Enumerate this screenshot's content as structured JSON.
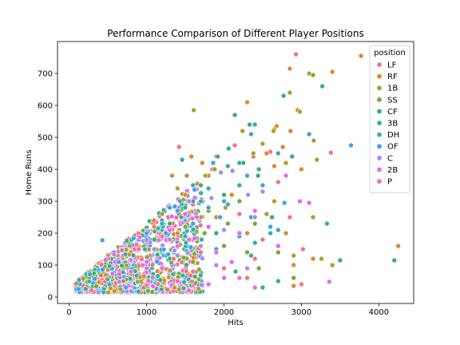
{
  "chart_data": {
    "type": "scatter",
    "title": "Performance Comparison of Different Player Positions",
    "xlabel": "Hits",
    "ylabel": "Home Runs",
    "xlim": [
      -150,
      4450
    ],
    "ylim": [
      -20,
      800
    ],
    "xticks": [
      0,
      1000,
      2000,
      3000,
      4000
    ],
    "yticks": [
      0,
      100,
      200,
      300,
      400,
      500,
      600,
      700
    ],
    "grid": false,
    "legend": {
      "title": "position",
      "placement": "top-right"
    },
    "series": [
      {
        "name": "LF",
        "color": "#f77189",
        "points": [
          [
            2930,
            760
          ],
          [
            2140,
            475
          ],
          [
            1420,
            470
          ],
          [
            2600,
            455
          ],
          [
            3380,
            452
          ],
          [
            1850,
            400
          ],
          [
            2700,
            360
          ],
          [
            2850,
            250
          ],
          [
            3020,
            150
          ],
          [
            2500,
            180
          ],
          [
            1600,
            290
          ],
          [
            2200,
            260
          ],
          [
            2400,
            120
          ],
          [
            1200,
            190
          ],
          [
            1700,
            140
          ],
          [
            2000,
            90
          ],
          [
            3000,
            40
          ],
          [
            900,
            150
          ],
          [
            1350,
            120
          ],
          [
            2300,
            60
          ]
        ]
      },
      {
        "name": "RF",
        "color": "#dc8932",
        "points": [
          [
            3770,
            755
          ],
          [
            3400,
            705
          ],
          [
            2850,
            715
          ],
          [
            2300,
            610
          ],
          [
            2680,
            535
          ],
          [
            2950,
            585
          ],
          [
            2760,
            470
          ],
          [
            2550,
            450
          ],
          [
            2380,
            440
          ],
          [
            1900,
            440
          ],
          [
            1580,
            440
          ],
          [
            1720,
            420
          ],
          [
            1330,
            380
          ],
          [
            3000,
            400
          ],
          [
            2650,
            525
          ],
          [
            2860,
            520
          ],
          [
            2100,
            320
          ],
          [
            1700,
            300
          ],
          [
            4250,
            160
          ],
          [
            2900,
            35
          ],
          [
            3150,
            120
          ],
          [
            2900,
            100
          ],
          [
            2300,
            200
          ],
          [
            1500,
            320
          ],
          [
            1800,
            380
          ],
          [
            2650,
            410
          ],
          [
            1900,
            250
          ],
          [
            1100,
            220
          ],
          [
            1400,
            200
          ]
        ]
      },
      {
        "name": "1B",
        "color": "#ae9d31",
        "points": [
          [
            1610,
            585
          ],
          [
            2850,
            640
          ],
          [
            3100,
            700
          ],
          [
            2980,
            580
          ],
          [
            2640,
            520
          ],
          [
            2380,
            450
          ],
          [
            2240,
            520
          ],
          [
            2500,
            480
          ],
          [
            2800,
            420
          ],
          [
            3160,
            490
          ],
          [
            3200,
            430
          ],
          [
            1520,
            380
          ],
          [
            1880,
            400
          ],
          [
            1760,
            380
          ],
          [
            1400,
            340
          ],
          [
            3150,
            250
          ],
          [
            2900,
            130
          ],
          [
            3400,
            100
          ],
          [
            3260,
            120
          ],
          [
            2650,
            300
          ],
          [
            2020,
            280
          ],
          [
            1200,
            260
          ],
          [
            2550,
            260
          ],
          [
            1700,
            250
          ],
          [
            2800,
            200
          ]
        ]
      },
      {
        "name": "SS",
        "color": "#77ab31",
        "points": [
          [
            3150,
            695
          ],
          [
            2200,
            300
          ],
          [
            1800,
            270
          ],
          [
            2400,
            230
          ],
          [
            1500,
            220
          ],
          [
            2000,
            160
          ],
          [
            1300,
            180
          ],
          [
            2700,
            140
          ],
          [
            2450,
            90
          ],
          [
            1100,
            150
          ],
          [
            1750,
            200
          ],
          [
            2900,
            60
          ],
          [
            1600,
            110
          ],
          [
            2300,
            140
          ],
          [
            2050,
            230
          ]
        ]
      },
      {
        "name": "CF",
        "color": "#33b07a",
        "points": [
          [
            2770,
            630
          ],
          [
            2140,
            570
          ],
          [
            3500,
            115
          ],
          [
            4200,
            115
          ],
          [
            2330,
            540
          ],
          [
            2060,
            465
          ],
          [
            1920,
            440
          ],
          [
            2250,
            420
          ],
          [
            2440,
            380
          ],
          [
            2620,
            250
          ],
          [
            1700,
            350
          ],
          [
            1500,
            280
          ],
          [
            2000,
            320
          ],
          [
            1300,
            230
          ],
          [
            2700,
            50
          ],
          [
            2150,
            80
          ],
          [
            1900,
            200
          ],
          [
            2500,
            30
          ],
          [
            1100,
            180
          ]
        ]
      },
      {
        "name": "3B",
        "color": "#36ada4",
        "points": [
          [
            3270,
            660
          ],
          [
            2400,
            540
          ],
          [
            1460,
            430
          ],
          [
            2350,
            510
          ],
          [
            2200,
            420
          ],
          [
            3330,
            230
          ],
          [
            2880,
            440
          ],
          [
            2700,
            450
          ],
          [
            2450,
            400
          ],
          [
            1800,
            340
          ],
          [
            2200,
            350
          ],
          [
            1600,
            300
          ],
          [
            2050,
            410
          ],
          [
            1300,
            280
          ],
          [
            2600,
            200
          ],
          [
            1500,
            190
          ],
          [
            2800,
            380
          ],
          [
            1900,
            150
          ],
          [
            2350,
            130
          ],
          [
            1200,
            240
          ]
        ]
      },
      {
        "name": "DH",
        "color": "#38aaba",
        "points": [
          [
            3100,
            510
          ],
          [
            2500,
            350
          ],
          [
            2350,
            250
          ],
          [
            1800,
            280
          ],
          [
            1500,
            260
          ],
          [
            1600,
            350
          ],
          [
            2050,
            290
          ],
          [
            1200,
            230
          ],
          [
            2700,
            210
          ],
          [
            1450,
            250
          ],
          [
            1150,
            215
          ],
          [
            2400,
            170
          ]
        ]
      },
      {
        "name": "OF",
        "color": "#3ba3ec",
        "points": [
          [
            3640,
            475
          ],
          [
            2780,
            295
          ],
          [
            430,
            178
          ],
          [
            1860,
            420
          ],
          [
            1400,
            270
          ],
          [
            2300,
            380
          ],
          [
            2000,
            300
          ],
          [
            1700,
            300
          ],
          [
            1600,
            230
          ],
          [
            2600,
            220
          ],
          [
            1950,
            250
          ],
          [
            1250,
            200
          ],
          [
            2200,
            190
          ],
          [
            1000,
            200
          ]
        ]
      },
      {
        "name": "C",
        "color": "#a48cf4",
        "points": [
          [
            2110,
            395
          ],
          [
            2310,
            320
          ],
          [
            1960,
            390
          ],
          [
            1840,
            310
          ],
          [
            1640,
            260
          ],
          [
            1500,
            240
          ],
          [
            1700,
            160
          ],
          [
            2000,
            210
          ],
          [
            2400,
            250
          ],
          [
            2500,
            330
          ],
          [
            1300,
            180
          ],
          [
            1400,
            130
          ],
          [
            1900,
            100
          ],
          [
            2300,
            90
          ],
          [
            1100,
            150
          ],
          [
            1550,
            300
          ]
        ]
      },
      {
        "name": "2B",
        "color": "#e866f4",
        "points": [
          [
            2980,
            300
          ],
          [
            3100,
            295
          ],
          [
            3360,
            48
          ],
          [
            2800,
            380
          ],
          [
            2400,
            270
          ],
          [
            2200,
            200
          ],
          [
            2700,
            160
          ],
          [
            1650,
            250
          ],
          [
            1800,
            220
          ],
          [
            1500,
            260
          ],
          [
            1900,
            140
          ],
          [
            2100,
            110
          ],
          [
            2000,
            60
          ],
          [
            1300,
            210
          ],
          [
            1400,
            160
          ],
          [
            2400,
            30
          ],
          [
            1550,
            180
          ]
        ]
      },
      {
        "name": "P",
        "color": "#f668c2",
        "points": [
          [
            1200,
            90
          ],
          [
            950,
            100
          ],
          [
            1600,
            80
          ],
          [
            2200,
            60
          ],
          [
            800,
            80
          ],
          [
            1800,
            40
          ],
          [
            1400,
            50
          ]
        ]
      }
    ]
  }
}
